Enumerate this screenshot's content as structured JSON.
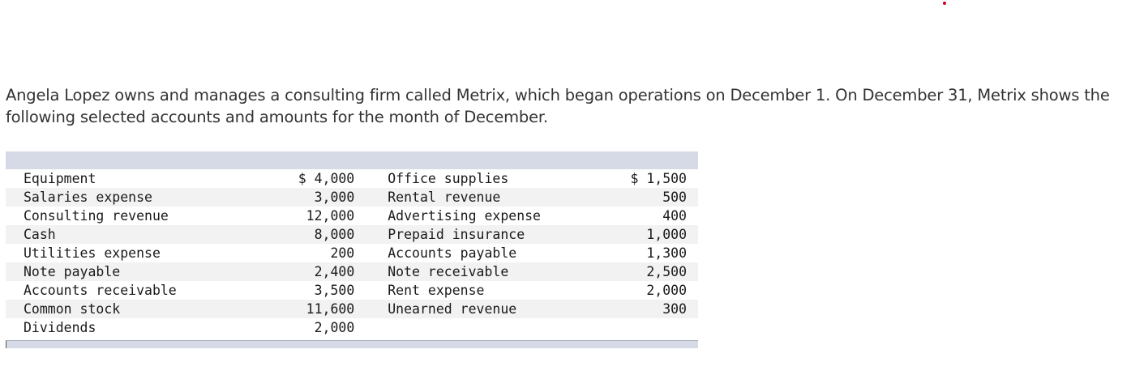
{
  "intro_text": "Angela Lopez owns and manages a consulting firm called Metrix, which began operations on December 1. On December 31, Metrix shows the following selected accounts and amounts for the month of December.",
  "accounts": {
    "rows": [
      {
        "left_name": "Equipment",
        "left_amount": "$ 4,000",
        "right_name": "Office supplies",
        "right_amount": "$ 1,500"
      },
      {
        "left_name": "Salaries expense",
        "left_amount": "3,000",
        "right_name": "Rental revenue",
        "right_amount": "500"
      },
      {
        "left_name": "Consulting revenue",
        "left_amount": "12,000",
        "right_name": "Advertising expense",
        "right_amount": "400"
      },
      {
        "left_name": "Cash",
        "left_amount": "8,000",
        "right_name": "Prepaid insurance",
        "right_amount": "1,000"
      },
      {
        "left_name": "Utilities expense",
        "left_amount": "200",
        "right_name": "Accounts payable",
        "right_amount": "1,300"
      },
      {
        "left_name": "Note payable",
        "left_amount": "2,400",
        "right_name": "Note receivable",
        "right_amount": "2,500"
      },
      {
        "left_name": "Accounts receivable",
        "left_amount": "3,500",
        "right_name": "Rent expense",
        "right_amount": "2,000"
      },
      {
        "left_name": "Common stock",
        "left_amount": "11,600",
        "right_name": "Unearned revenue",
        "right_amount": "300"
      },
      {
        "left_name": "Dividends",
        "left_amount": "2,000",
        "right_name": "",
        "right_amount": ""
      }
    ]
  },
  "colors": {
    "header_band": "#d6dae6",
    "stripe": "#f2f2f2",
    "text": "#333333",
    "marker_dot": "#d0021b"
  }
}
